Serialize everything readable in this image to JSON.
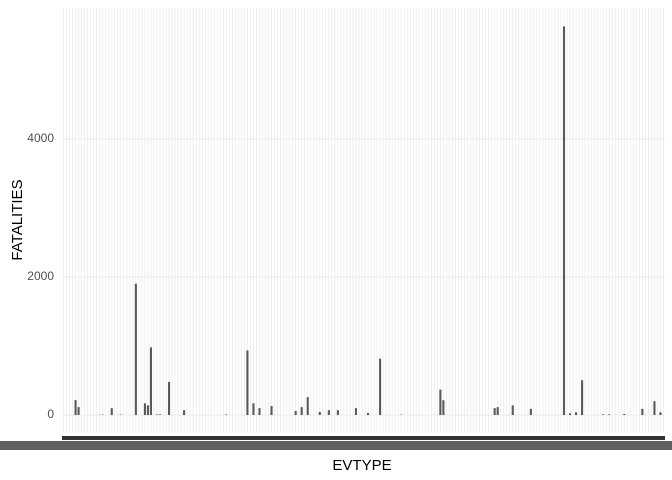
{
  "chart_data": {
    "type": "bar",
    "xlabel": "EVTYPE",
    "ylabel": "FATALITIES",
    "categories": [
      null,
      null,
      null,
      null,
      null,
      null,
      null,
      null,
      null,
      null,
      null,
      null,
      null,
      null,
      null,
      null,
      null,
      null,
      null,
      null,
      null,
      null,
      null,
      null,
      null,
      null,
      null,
      null,
      null,
      null,
      null,
      null,
      null,
      null,
      null,
      null,
      null,
      null,
      null,
      null,
      null,
      null,
      null,
      null,
      null,
      null,
      null,
      null,
      null,
      null,
      null,
      null,
      null,
      null,
      null,
      null,
      null,
      null,
      null,
      null,
      null,
      null,
      null,
      null,
      null,
      null,
      null,
      null,
      null,
      null,
      null,
      null,
      null,
      null,
      null,
      null,
      null,
      null,
      null,
      null,
      null,
      null,
      null,
      null,
      null,
      null,
      null,
      null,
      null,
      null,
      null,
      null,
      null,
      null,
      null,
      null,
      null,
      null,
      null,
      null,
      null,
      null,
      null,
      null,
      null,
      null,
      null,
      null,
      null,
      null,
      null,
      null,
      null,
      null,
      null,
      null,
      null,
      null,
      null,
      null,
      null,
      null,
      null,
      null,
      null,
      null,
      null,
      null,
      null,
      null,
      null,
      null,
      null,
      null,
      null,
      null,
      null,
      null,
      null,
      null,
      null,
      null,
      null,
      null,
      null,
      null,
      null,
      null,
      null,
      null,
      null,
      null,
      null,
      null,
      null,
      null,
      null,
      null,
      null,
      null,
      null,
      null,
      null,
      null,
      null,
      null,
      null,
      null,
      null,
      null,
      null,
      null,
      null,
      null,
      null,
      null,
      null,
      null,
      null,
      null,
      null,
      null,
      null,
      null,
      null,
      null,
      null,
      null,
      null,
      null,
      null,
      null,
      null,
      null,
      null,
      null,
      null,
      null,
      null,
      null
    ],
    "values": [
      0,
      0,
      0,
      0,
      217,
      115,
      0,
      0,
      0,
      0,
      0,
      0,
      3,
      5,
      0,
      0,
      100,
      0,
      0,
      5,
      0,
      0,
      0,
      0,
      1903,
      0,
      0,
      170,
      140,
      980,
      0,
      8,
      10,
      0,
      0,
      480,
      0,
      0,
      0,
      0,
      70,
      0,
      0,
      0,
      0,
      0,
      0,
      0,
      0,
      0,
      0,
      0,
      0,
      0,
      8,
      0,
      0,
      0,
      0,
      0,
      0,
      937,
      0,
      170,
      0,
      100,
      0,
      0,
      0,
      130,
      0,
      0,
      0,
      0,
      0,
      0,
      0,
      60,
      0,
      115,
      0,
      260,
      0,
      0,
      0,
      45,
      0,
      0,
      70,
      0,
      0,
      70,
      0,
      0,
      0,
      0,
      0,
      100,
      0,
      0,
      0,
      30,
      0,
      0,
      0,
      816,
      0,
      0,
      0,
      0,
      0,
      0,
      5,
      0,
      0,
      0,
      0,
      0,
      0,
      0,
      0,
      0,
      0,
      0,
      0,
      368,
      215,
      0,
      0,
      0,
      0,
      0,
      0,
      0,
      0,
      0,
      0,
      0,
      0,
      0,
      0,
      0,
      0,
      100,
      115,
      0,
      0,
      0,
      0,
      140,
      0,
      0,
      0,
      0,
      0,
      90,
      0,
      0,
      0,
      0,
      0,
      0,
      0,
      0,
      0,
      0,
      5633,
      0,
      25,
      0,
      40,
      0,
      504,
      0,
      0,
      0,
      0,
      0,
      0,
      10,
      0,
      10,
      0,
      0,
      0,
      0,
      15,
      0,
      0,
      0,
      0,
      0,
      90,
      0,
      0,
      0,
      200,
      0,
      40,
      0
    ],
    "color": "#595959",
    "ylim": [
      -246,
      5899
    ],
    "yticks": [
      0,
      2000,
      4000
    ],
    "grid": true
  }
}
